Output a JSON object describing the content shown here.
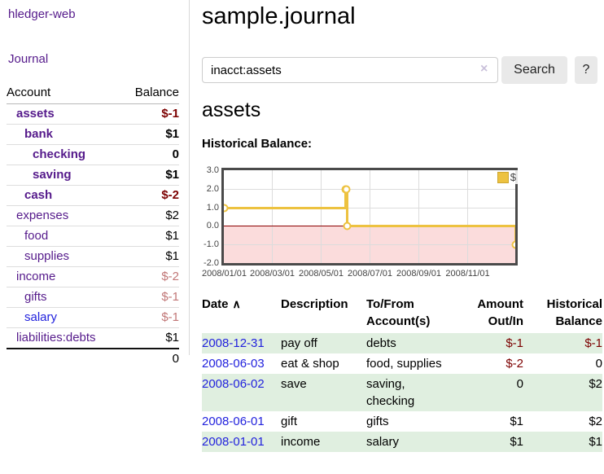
{
  "sidebar": {
    "brand": "hledger-web",
    "journal_link": "Journal",
    "accounts_table": {
      "account_header": "Account",
      "balance_header": "Balance",
      "rows": [
        {
          "account": "assets",
          "depth": 1,
          "bold": true,
          "balance": "$-1",
          "negative": true
        },
        {
          "account": "bank",
          "depth": 2,
          "bold": true,
          "balance": "$1",
          "negative": false
        },
        {
          "account": "checking",
          "depth": 3,
          "bold": true,
          "balance": "0",
          "negative": false
        },
        {
          "account": "saving",
          "depth": 3,
          "bold": true,
          "balance": "$1",
          "negative": false
        },
        {
          "account": "cash",
          "depth": 2,
          "bold": true,
          "balance": "$-2",
          "negative": true
        },
        {
          "account": "expenses",
          "depth": 1,
          "bold": false,
          "balance": "$2",
          "negative": false
        },
        {
          "account": "food",
          "depth": 2,
          "bold": false,
          "balance": "$1",
          "negative": false
        },
        {
          "account": "supplies",
          "depth": 2,
          "bold": false,
          "balance": "$1",
          "negative": false
        },
        {
          "account": "income",
          "depth": 1,
          "bold": false,
          "balance": "$-2",
          "negative": true
        },
        {
          "account": "gifts",
          "depth": 2,
          "bold": false,
          "balance": "$-1",
          "negative": true
        },
        {
          "account": "salary",
          "depth": 2,
          "bold": false,
          "balance": "$-1",
          "negative": true,
          "unvisited": true
        },
        {
          "account": "liabilities:debts",
          "depth": 1,
          "bold": false,
          "balance": "$1",
          "negative": false
        }
      ],
      "total": "0"
    }
  },
  "main": {
    "title": "sample.journal",
    "search": {
      "value": "inacct:assets",
      "clear_icon": "×",
      "search_button": "Search",
      "help_button": "?"
    },
    "account_heading": "assets",
    "chart_label": "Historical Balance:"
  },
  "chart_data": {
    "type": "line",
    "step": true,
    "title": "Historical Balance",
    "legend": {
      "position": "top-right",
      "entries": [
        {
          "label": "$",
          "color": "#edc240"
        }
      ]
    },
    "x_range": [
      "2008-01-01",
      "2008-12-31"
    ],
    "y_range": [
      -2,
      3
    ],
    "y_tick_values": [
      3,
      2,
      1,
      0,
      -1,
      -2
    ],
    "y_tick_labels": [
      "3.0",
      "2.0",
      "1.0",
      "0.0",
      "-1.0",
      "-2.0"
    ],
    "x_tick_dates": [
      "2008-01-01",
      "2008-03-01",
      "2008-05-01",
      "2008-07-01",
      "2008-09-01",
      "2008-11-01"
    ],
    "x_tick_labels": [
      "2008/01/01",
      "2008/03/01",
      "2008/05/01",
      "2008/07/01",
      "2008/09/01",
      "2008/11/01"
    ],
    "series": [
      {
        "name": "$",
        "points": [
          {
            "date": "2008-01-01",
            "value": 1
          },
          {
            "date": "2008-06-01",
            "value": 2
          },
          {
            "date": "2008-06-02",
            "value": 2
          },
          {
            "date": "2008-06-03",
            "value": 0
          },
          {
            "date": "2008-12-31",
            "value": -1
          }
        ]
      }
    ],
    "colors": {
      "line": "#edc240",
      "negative_fill": "#fbdcdc",
      "zero_line": "#8b0000",
      "grid": "#dcdcdc"
    }
  },
  "register_table": {
    "columns": {
      "date": "Date",
      "description": "Description",
      "accounts": "To/From Account(s)",
      "amount": "Amount Out/In",
      "balance": "Historical Balance"
    },
    "sort_glyph": "∧",
    "rows": [
      {
        "date": "2008-12-31",
        "description": "pay off",
        "accounts": "debts",
        "amount": "$-1",
        "amount_negative": true,
        "balance": "$-1",
        "balance_negative": true
      },
      {
        "date": "2008-06-03",
        "description": "eat & shop",
        "accounts": "food, supplies",
        "amount": "$-2",
        "amount_negative": true,
        "balance": "0",
        "balance_negative": false
      },
      {
        "date": "2008-06-02",
        "description": "save",
        "accounts": "saving, checking",
        "amount": "0",
        "amount_negative": false,
        "balance": "$2",
        "balance_negative": false
      },
      {
        "date": "2008-06-01",
        "description": "gift",
        "accounts": "gifts",
        "amount": "$1",
        "amount_negative": false,
        "balance": "$2",
        "balance_negative": false
      },
      {
        "date": "2008-01-01",
        "description": "income",
        "accounts": "salary",
        "amount": "$1",
        "amount_negative": false,
        "balance": "$1",
        "balance_negative": false
      }
    ]
  },
  "colors": {
    "link_purple": "#551a8b",
    "link_blue": "#2222dd",
    "negative": "#7c0000",
    "negative_muted": "#c17676",
    "row_stripe": "#e0efe0"
  }
}
